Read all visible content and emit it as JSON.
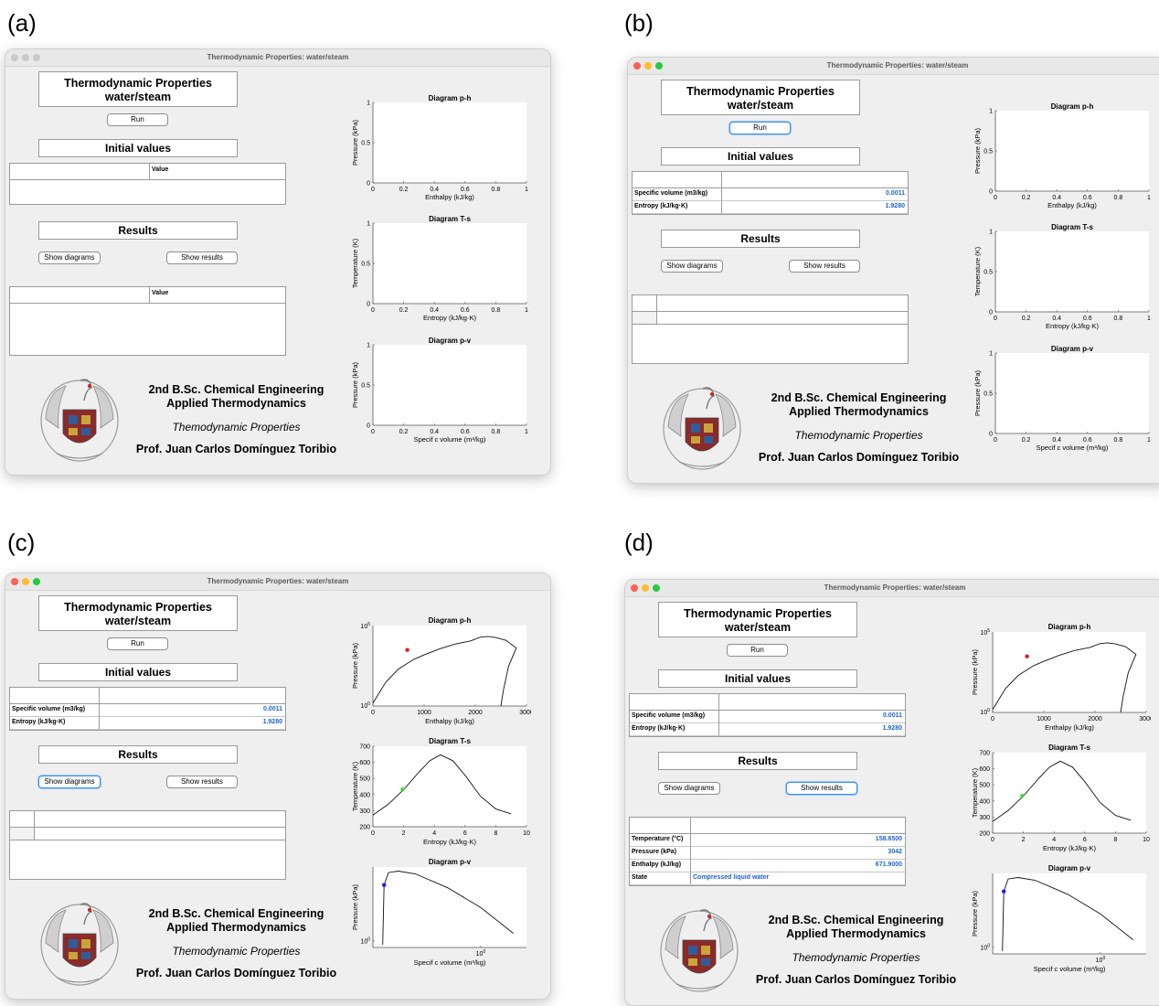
{
  "panel_labels": [
    "(a)",
    "(b)",
    "(c)",
    "(d)"
  ],
  "window_title": "Thermodynamic Properties: water/steam",
  "app_title_line1": "Thermodynamic Properties",
  "app_title_line2": "water/steam",
  "run_label": "Run",
  "initial_values_title": "Initial values",
  "results_title": "Results",
  "show_diagrams_label": "Show diagrams",
  "show_results_label": "Show results",
  "value_header": "Value",
  "inputs": {
    "specific_volume_label": "Specific volume (m3/kg)",
    "specific_volume_value": "0.0011",
    "entropy_label": "Entropy (kJ/kg·K)",
    "entropy_value": "1.9280"
  },
  "results": {
    "temperature_label": "Temperature (°C)",
    "temperature_value": "158.8500",
    "pressure_label": "Pressure (kPa)",
    "pressure_value": "3042",
    "enthalpy_label": "Enthalpy (kJ/kg)",
    "enthalpy_value": "671.9000",
    "state_label": "State",
    "state_value": "Compressed liquid water"
  },
  "course_line1": "2nd B.Sc. Chemical Engineering",
  "course_line2": "Applied Thermodynamics",
  "subtitle": "Themodynamic Properties",
  "professor": "Prof. Juan Carlos Domínguez Toribio",
  "university_seal_text": "UNIVERSITAS COMPLUTENSIS MATRITENSIS",
  "diagrams": {
    "ph": {
      "title": "Diagram p-h",
      "xlabel": "Enthalpy (kJ/kg)",
      "ylabel": "Pressure (kPa)"
    },
    "ts": {
      "title": "Diagram T-s",
      "xlabel": "Entropy (kJ/kg·K)",
      "ylabel": "Temperature (K)"
    },
    "pv": {
      "title": "Diagram p-v",
      "xlabel": "Specif c  volume  (m³/kg)",
      "ylabel": "Pressure (kPa)"
    }
  },
  "empty_ticks": [
    "0",
    "0.2",
    "0.4",
    "0.6",
    "0.8",
    "1"
  ],
  "empty_yticks": [
    "0",
    "0.5",
    "1"
  ],
  "ph_xticks": [
    "0",
    "1000",
    "2000",
    "3000"
  ],
  "ph_yticks": {
    "base": "10",
    "top_exp": "5",
    "bottom_exp": "0"
  },
  "ts_xticks": [
    "0",
    "2",
    "4",
    "6",
    "8",
    "10"
  ],
  "ts_yticks": [
    "200",
    "300",
    "400",
    "500",
    "600",
    "700"
  ],
  "pv_xtick": {
    "base": "10",
    "exp": "0"
  },
  "pv_ytick": {
    "base": "10",
    "exp": "0"
  },
  "chart_data": [
    {
      "type": "line",
      "title": "Diagram p-h",
      "xlabel": "Enthalpy (kJ/kg)",
      "ylabel": "Pressure (kPa)",
      "xlim": [
        0,
        3000
      ],
      "ylim": [
        1,
        100000
      ],
      "yscale": "log",
      "series": [
        {
          "values": [
            [
              0,
              1.5
            ],
            [
              250,
              30
            ],
            [
              500,
              200
            ],
            [
              800,
              800
            ],
            [
              1000,
              1500
            ],
            [
              1300,
              3500
            ],
            [
              1600,
              7000
            ],
            [
              1900,
              11000
            ],
            [
              2100,
              19000
            ],
            [
              2250,
              21000
            ],
            [
              2400,
              18000
            ],
            [
              2600,
              12000
            ],
            [
              2800,
              4000
            ],
            [
              2650,
              300
            ],
            [
              2550,
              10
            ],
            [
              2500,
              1
            ]
          ]
        }
      ],
      "point": {
        "x": 671.9,
        "y": 3042,
        "color": "#e41a1c"
      }
    },
    {
      "type": "line",
      "title": "Diagram T-s",
      "xlabel": "Entropy (kJ/kg·K)",
      "ylabel": "Temperature (K)",
      "xlim": [
        0,
        10
      ],
      "ylim": [
        200,
        700
      ],
      "series": [
        {
          "values": [
            [
              0,
              273
            ],
            [
              1,
              340
            ],
            [
              2,
              430
            ],
            [
              3,
              540
            ],
            [
              3.7,
              610
            ],
            [
              4.4,
              647
            ],
            [
              5.2,
              610
            ],
            [
              6,
              520
            ],
            [
              7,
              390
            ],
            [
              8,
              310
            ],
            [
              9,
              280
            ]
          ]
        }
      ],
      "point": {
        "x": 1.928,
        "y": 432,
        "color": "#3ddc3d"
      }
    },
    {
      "type": "line",
      "title": "Diagram p-v",
      "xlabel": "Specific volume (m³/kg)",
      "ylabel": "Pressure (kPa)",
      "xscale": "log",
      "yscale": "log",
      "series": [
        {
          "values": [
            [
              0.001,
              0.6
            ],
            [
              0.0011,
              3042
            ],
            [
              0.0015,
              18000
            ],
            [
              0.003,
              22000
            ],
            [
              0.01,
              15000
            ],
            [
              0.1,
              2000
            ],
            [
              1,
              120
            ],
            [
              10,
              3
            ]
          ]
        }
      ],
      "point": {
        "x": 0.0011,
        "y": 3042,
        "color": "#1a1aff"
      }
    }
  ]
}
